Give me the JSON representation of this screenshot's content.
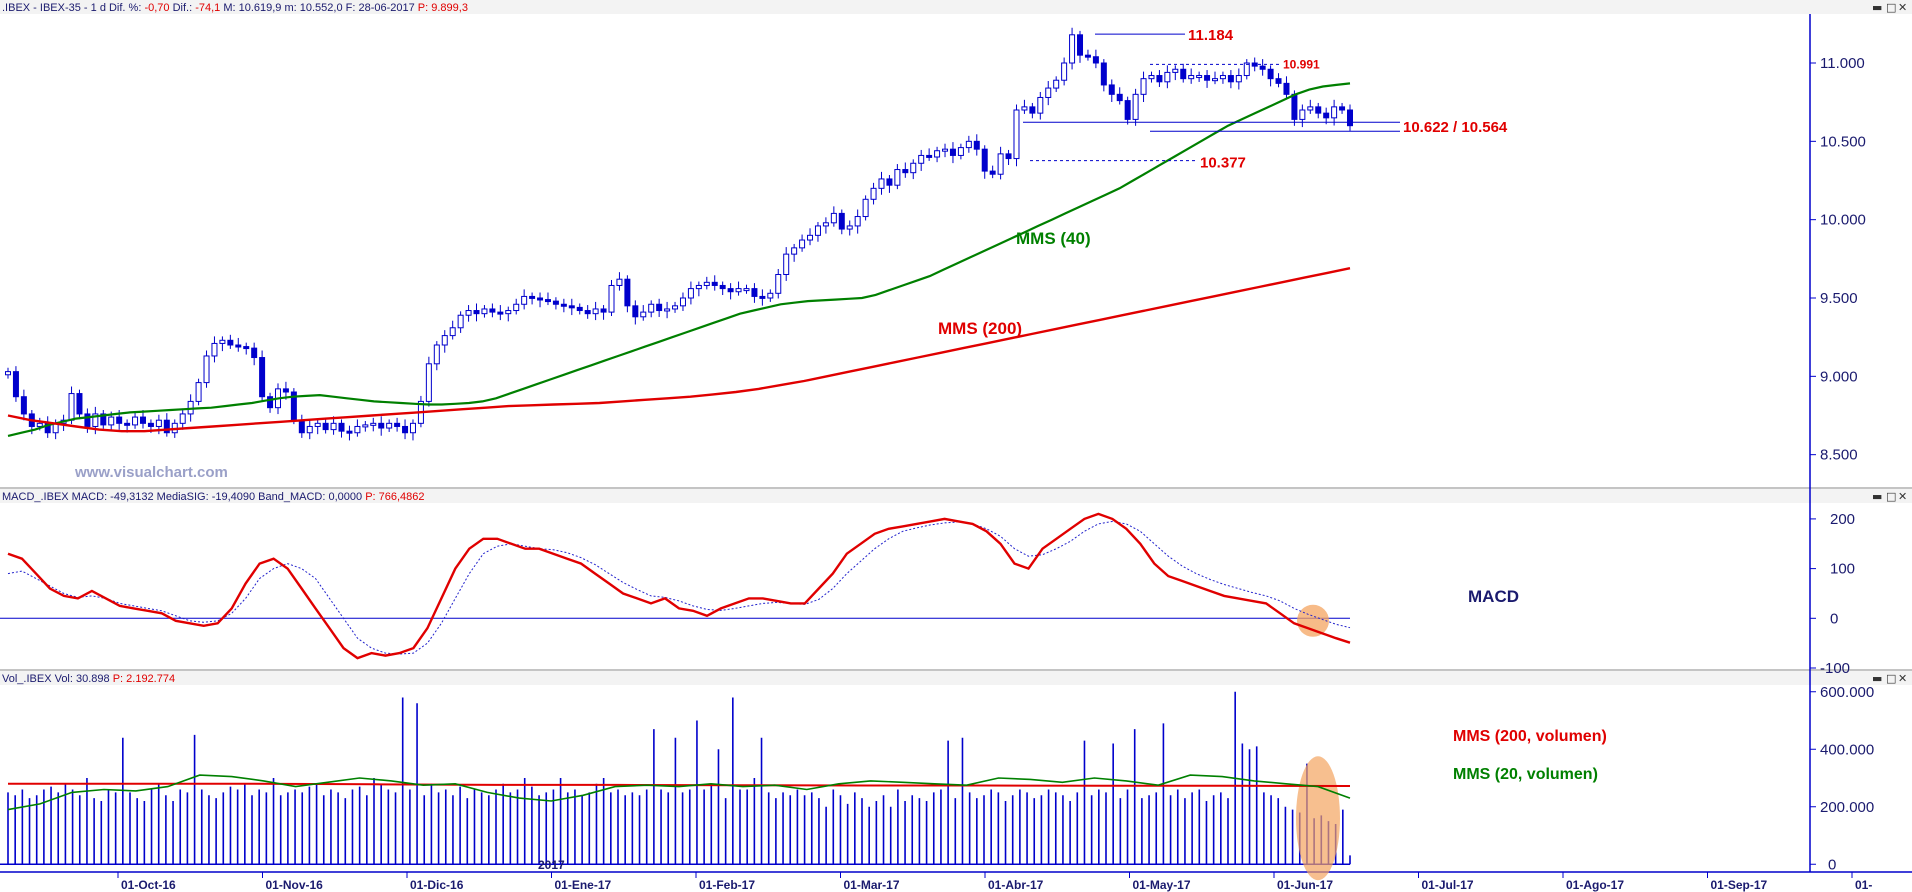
{
  "panel_titles": {
    "price": ".IBEX - IBEX-35 -  1 d  Dif. %: -0,70  Dif.: -74,1  M: 10.619,9  m: 10.552,0  F: 28-06-2017  P: 9.899,3",
    "price_parts": [
      ".IBEX - IBEX-35 -  1 d  Dif. %: ",
      "-0,70",
      "  Dif.: ",
      "-74,1",
      "  M: 10.619,9  m: 10.552,0  F: 28-06-2017  ",
      "P: 9.899,3"
    ],
    "macd_parts": [
      "MACD_.IBEX  MACD: -49,3132  MediaSIG: -19,4090  Band_MACD: 0,0000  ",
      "P: 766,4862"
    ],
    "vol_parts": [
      "Vol_.IBEX  Vol: 30.898  ",
      "P: 2.192.774"
    ]
  },
  "window_buttons": [
    "▬",
    "□",
    "✕"
  ],
  "watermark": "www.visualchart.com",
  "colors": {
    "axis": "#0000cc",
    "candle": "#0000cc",
    "mms40": "#008000",
    "mms200": "#e00000",
    "macd": "#e00000",
    "signal": "#2222cc",
    "volume": "#0000cc",
    "highlight": "#f4a460",
    "label_red": "#e00000"
  },
  "chart_data": [
    {
      "type": "candlestick",
      "title": "",
      "x_tick_labels": [
        "01-Oct-16",
        "01-Nov-16",
        "01-Dic-16",
        "01-Ene-17",
        "01-Feb-17",
        "01-Mar-17",
        "01-Abr-17",
        "01-May-17",
        "01-Jun-17",
        "01-Jul-17",
        "01-Ago-17",
        "01-Sep-17",
        "01-"
      ],
      "year_label": "2017",
      "y_ticks": [
        "8.500",
        "9.000",
        "9.500",
        "10.000",
        "10.500",
        "11.000"
      ],
      "ylim": [
        8300,
        11300
      ],
      "close": [
        9030,
        8870,
        8760,
        8680,
        8700,
        8640,
        8700,
        8720,
        8890,
        8760,
        8680,
        8760,
        8690,
        8740,
        8700,
        8690,
        8740,
        8700,
        8680,
        8720,
        8640,
        8700,
        8760,
        8840,
        8960,
        9130,
        9210,
        9230,
        9200,
        9190,
        9180,
        9120,
        8870,
        8800,
        8920,
        8900,
        8720,
        8640,
        8680,
        8700,
        8660,
        8700,
        8650,
        8640,
        8680,
        8690,
        8700,
        8670,
        8700,
        8680,
        8640,
        8700,
        8840,
        9080,
        9200,
        9260,
        9310,
        9390,
        9420,
        9400,
        9430,
        9410,
        9400,
        9420,
        9460,
        9510,
        9500,
        9490,
        9480,
        9460,
        9450,
        9440,
        9420,
        9400,
        9430,
        9410,
        9580,
        9620,
        9450,
        9380,
        9410,
        9460,
        9420,
        9430,
        9450,
        9500,
        9560,
        9580,
        9600,
        9580,
        9560,
        9540,
        9560,
        9560,
        9510,
        9500,
        9530,
        9650,
        9780,
        9820,
        9870,
        9900,
        9960,
        9980,
        10040,
        9940,
        9960,
        10020,
        10130,
        10200,
        10260,
        10220,
        10320,
        10300,
        10360,
        10410,
        10400,
        10440,
        10450,
        10410,
        10460,
        10500,
        10450,
        10310,
        10290,
        10420,
        10390,
        10700,
        10720,
        10680,
        10780,
        10840,
        10890,
        11000,
        11180,
        11050,
        11040,
        11000,
        10860,
        10800,
        10760,
        10640,
        10800,
        10900,
        10920,
        10880,
        10940,
        10960,
        10900,
        10920,
        10920,
        10890,
        10900,
        10920,
        10880,
        10920,
        11000,
        10980,
        10960,
        10900,
        10870,
        10800,
        10640,
        10700,
        10720,
        10680,
        10650,
        10720,
        10700,
        10600
      ],
      "series": [
        {
          "name": "MMS (40)",
          "values": [
            8620,
            8640,
            8660,
            8690,
            8710,
            8730,
            8740,
            8750,
            8760,
            8770,
            8775,
            8780,
            8785,
            8790,
            8795,
            8800,
            8810,
            8820,
            8830,
            8845,
            8860,
            8870,
            8875,
            8880,
            8870,
            8860,
            8850,
            8840,
            8835,
            8830,
            8825,
            8820,
            8820,
            8825,
            8830,
            8840,
            8860,
            8890,
            8920,
            8950,
            8980,
            9010,
            9040,
            9070,
            9100,
            9130,
            9160,
            9190,
            9220,
            9250,
            9280,
            9310,
            9340,
            9370,
            9400,
            9420,
            9440,
            9460,
            9470,
            9480,
            9485,
            9490,
            9495,
            9500,
            9520,
            9550,
            9580,
            9610,
            9640,
            9680,
            9720,
            9760,
            9800,
            9840,
            9880,
            9920,
            9960,
            10000,
            10040,
            10080,
            10120,
            10160,
            10200,
            10250,
            10300,
            10350,
            10400,
            10450,
            10500,
            10550,
            10600,
            10640,
            10680,
            10720,
            10760,
            10800,
            10830,
            10850,
            10860,
            10870
          ],
          "x_from": 0,
          "x_to": 1
        },
        {
          "name": "MMS (200)",
          "values": [
            8750,
            8720,
            8700,
            8680,
            8660,
            8650,
            8650,
            8660,
            8670,
            8680,
            8690,
            8700,
            8710,
            8720,
            8730,
            8740,
            8750,
            8760,
            8770,
            8780,
            8790,
            8800,
            8810,
            8815,
            8820,
            8825,
            8830,
            8840,
            8850,
            8860,
            8870,
            8885,
            8900,
            8920,
            8945,
            8970,
            9000,
            9030,
            9060,
            9090,
            9120,
            9150,
            9180,
            9210,
            9240,
            9270,
            9300,
            9330,
            9360,
            9390,
            9420,
            9450,
            9480,
            9510,
            9540,
            9570,
            9600,
            9630,
            9660,
            9690
          ],
          "x_from": 0,
          "x_to": 1
        }
      ],
      "horizontal_levels": [
        {
          "value": 11184,
          "label": "11.184",
          "style": "solid"
        },
        {
          "value": 10991,
          "label": "10.991",
          "style": "dashed"
        },
        {
          "value": 10622,
          "label": "10.622 / 10.564",
          "style": "solid",
          "value2": 10564
        },
        {
          "value": 10377,
          "label": "10.377",
          "style": "dashed"
        }
      ],
      "annotations": [
        "MMS (40)",
        "MMS (200)"
      ]
    },
    {
      "type": "line",
      "title": "MACD",
      "y_ticks": [
        "-100",
        "0",
        "100",
        "200"
      ],
      "ylim": [
        -100,
        230
      ],
      "series": [
        {
          "name": "MACD",
          "values": [
            130,
            120,
            90,
            60,
            45,
            40,
            55,
            40,
            25,
            20,
            15,
            10,
            -5,
            -10,
            -15,
            -10,
            20,
            70,
            110,
            120,
            100,
            60,
            20,
            -20,
            -60,
            -80,
            -70,
            -75,
            -70,
            -60,
            -20,
            40,
            100,
            140,
            160,
            160,
            150,
            140,
            140,
            130,
            120,
            110,
            90,
            70,
            50,
            40,
            30,
            40,
            20,
            15,
            5,
            20,
            30,
            40,
            40,
            35,
            30,
            30,
            60,
            90,
            130,
            150,
            170,
            180,
            185,
            190,
            195,
            200,
            195,
            190,
            175,
            150,
            110,
            100,
            140,
            160,
            180,
            200,
            210,
            200,
            180,
            150,
            110,
            85,
            75,
            65,
            55,
            45,
            40,
            35,
            30,
            10,
            -10,
            -20,
            -30,
            -40,
            -49
          ]
        },
        {
          "name": "MediaSIG",
          "values": [
            90,
            95,
            80,
            65,
            50,
            42,
            45,
            40,
            30,
            25,
            20,
            15,
            5,
            -5,
            -8,
            -5,
            10,
            40,
            80,
            100,
            110,
            100,
            80,
            40,
            0,
            -40,
            -60,
            -70,
            -72,
            -70,
            -50,
            -10,
            40,
            90,
            130,
            145,
            150,
            145,
            140,
            138,
            132,
            122,
            108,
            90,
            72,
            58,
            45,
            42,
            35,
            25,
            18,
            16,
            20,
            25,
            30,
            32,
            30,
            28,
            38,
            60,
            90,
            115,
            140,
            160,
            175,
            182,
            188,
            192,
            194,
            190,
            180,
            165,
            140,
            125,
            128,
            140,
            155,
            175,
            190,
            195,
            190,
            175,
            150,
            125,
            105,
            90,
            78,
            68,
            60,
            52,
            45,
            35,
            20,
            8,
            -2,
            -12,
            -19
          ]
        }
      ]
    },
    {
      "type": "bar",
      "title": "",
      "y_ticks": [
        "0",
        "200.000",
        "400.000",
        "600.000"
      ],
      "ylim": [
        -20000,
        620000
      ],
      "series": [
        {
          "name": "Vol",
          "values": [
            250000,
            240000,
            260000,
            230000,
            240000,
            260000,
            270000,
            250000,
            280000,
            260000,
            240000,
            300000,
            230000,
            220000,
            260000,
            250000,
            440000,
            250000,
            230000,
            220000,
            260000,
            280000,
            240000,
            220000,
            260000,
            250000,
            450000,
            260000,
            240000,
            230000,
            250000,
            270000,
            260000,
            280000,
            240000,
            260000,
            250000,
            300000,
            240000,
            250000,
            260000,
            250000,
            270000,
            280000,
            240000,
            260000,
            250000,
            230000,
            260000,
            270000,
            240000,
            300000,
            280000,
            260000,
            250000,
            580000,
            260000,
            560000,
            240000,
            280000,
            250000,
            260000,
            240000,
            270000,
            230000,
            260000,
            250000,
            240000,
            260000,
            280000,
            250000,
            260000,
            300000,
            270000,
            240000,
            250000,
            260000,
            300000,
            250000,
            260000,
            240000,
            250000,
            280000,
            300000,
            250000,
            260000,
            240000,
            250000,
            240000,
            260000,
            470000,
            260000,
            250000,
            440000,
            250000,
            260000,
            500000,
            260000,
            280000,
            400000,
            230000,
            580000,
            260000,
            260000,
            300000,
            440000,
            250000,
            230000,
            250000,
            240000,
            260000,
            240000,
            250000,
            230000,
            200000,
            260000,
            240000,
            210000,
            250000,
            230000,
            200000,
            220000,
            240000,
            200000,
            260000,
            220000,
            240000,
            230000,
            220000,
            250000,
            260000,
            430000,
            230000,
            440000,
            250000,
            230000,
            240000,
            260000,
            250000,
            220000,
            240000,
            260000,
            250000,
            230000,
            240000,
            260000,
            250000,
            240000,
            220000,
            250000,
            430000,
            240000,
            260000,
            250000,
            420000,
            230000,
            260000,
            470000,
            230000,
            240000,
            250000,
            490000,
            240000,
            260000,
            230000,
            250000,
            260000,
            220000,
            240000,
            250000,
            230000,
            600000,
            420000,
            400000,
            410000,
            250000,
            240000,
            230000,
            200000,
            190000,
            180000,
            350000,
            160000,
            170000,
            150000,
            140000,
            190000,
            30898
          ]
        },
        {
          "name": "MMS (200, volumen)",
          "values": [
            280000,
            280000,
            280000,
            278000,
            276000,
            276000,
            275000,
            274000,
            274000,
            273000,
            273000,
            272000
          ]
        },
        {
          "name": "MMS (20, volumen)",
          "values": [
            190000,
            210000,
            250000,
            260000,
            255000,
            270000,
            310000,
            305000,
            290000,
            270000,
            285000,
            300000,
            290000,
            275000,
            280000,
            250000,
            230000,
            220000,
            240000,
            270000,
            275000,
            270000,
            280000,
            270000,
            275000,
            260000,
            280000,
            290000,
            285000,
            280000,
            275000,
            300000,
            295000,
            285000,
            300000,
            290000,
            275000,
            310000,
            305000,
            290000,
            280000,
            270000,
            230000
          ]
        }
      ],
      "annotations": [
        "MMS (200, volumen)",
        "MMS (20, volumen)"
      ]
    }
  ]
}
